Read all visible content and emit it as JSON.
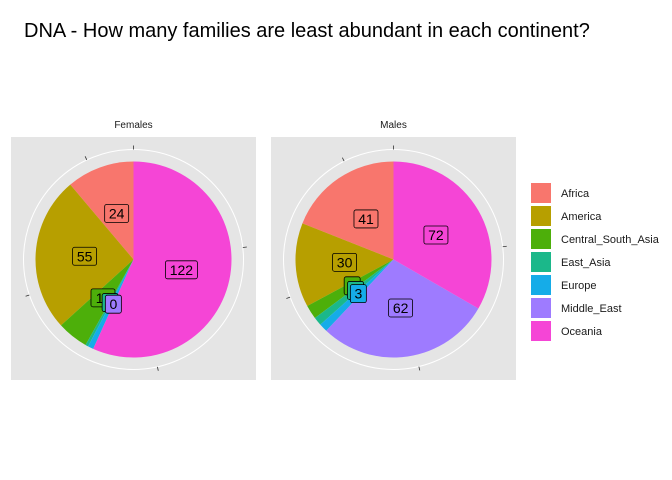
{
  "title": "DNA - How many families are least abundant in each continent?",
  "colors": {
    "Africa": "#F8766D",
    "America": "#B79F00",
    "Central_South_Asia": "#4DAF0A",
    "East_Asia": "#1BB88A",
    "Europe": "#15ACE8",
    "Middle_East": "#9E7BFF",
    "Oceania": "#F545D6",
    "panel_bg": "#E5E5E5",
    "grid": "#FFFFFF"
  },
  "chart_data": {
    "type": "pie",
    "title": "DNA - How many families are least abundant in each continent?",
    "categories": [
      "Africa",
      "America",
      "Central_South_Asia",
      "East_Asia",
      "Europe",
      "Middle_East",
      "Oceania"
    ],
    "legend_position": "right",
    "facets": [
      {
        "name": "Females",
        "values": [
          24,
          55,
          11,
          1,
          2,
          0,
          122
        ],
        "labels": [
          "24",
          "55",
          "11",
          "1",
          "",
          "0",
          "122"
        ]
      },
      {
        "name": "Males",
        "values": [
          41,
          30,
          5,
          3,
          3,
          62,
          72
        ],
        "labels": [
          "41",
          "30",
          "5",
          "3",
          "3",
          "62",
          "72"
        ]
      }
    ]
  }
}
